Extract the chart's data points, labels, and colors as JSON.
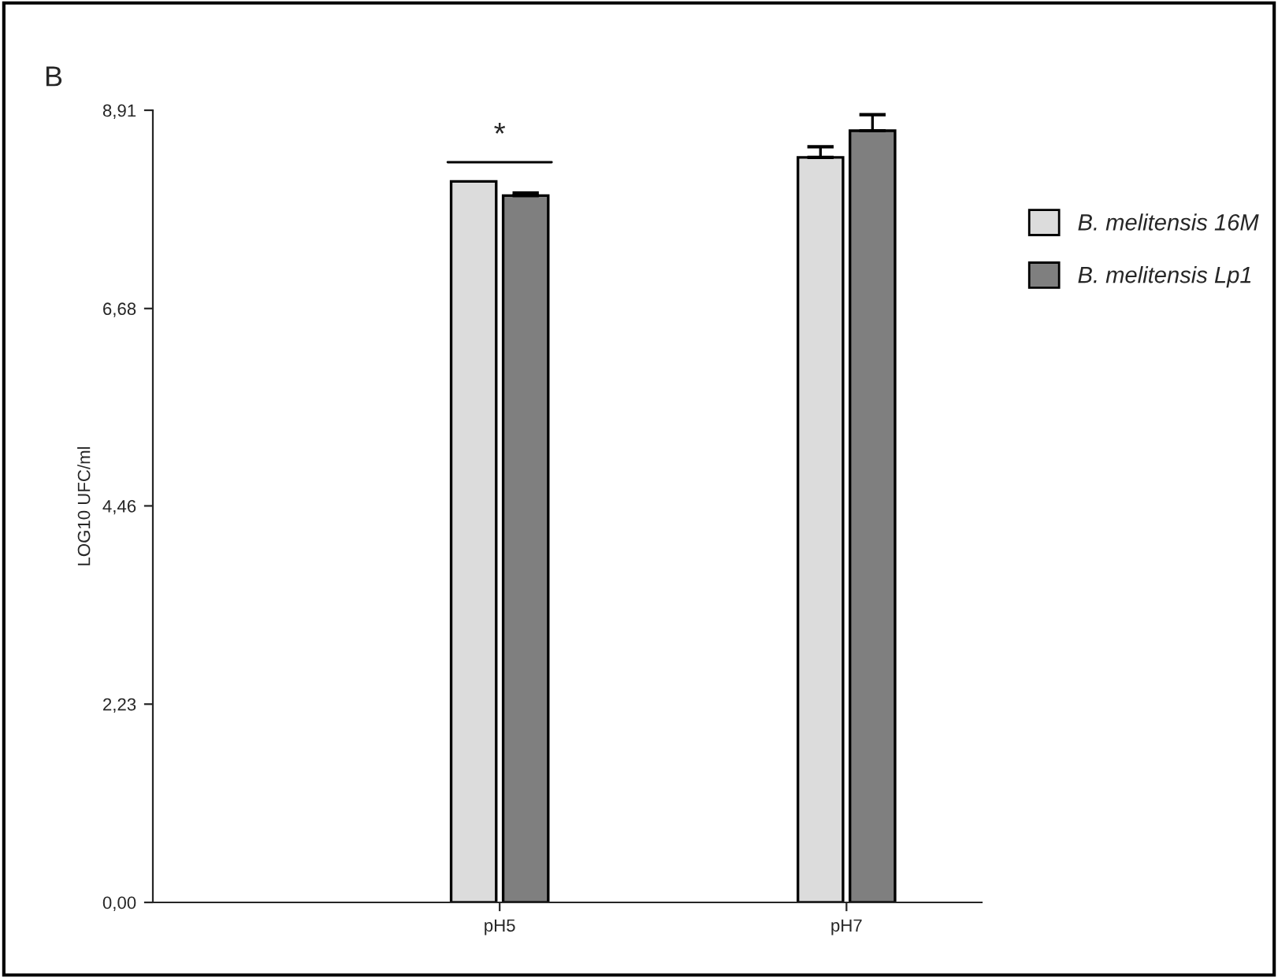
{
  "chart_data": {
    "type": "bar",
    "title": "B",
    "ylabel": "LOG10 UFC/ml",
    "categories": [
      "pH5",
      "pH7"
    ],
    "series": [
      {
        "name": "B. melitensis 16M",
        "color": "#dcdcdc",
        "values": [
          8.11,
          8.38
        ],
        "errors": [
          null,
          0.12
        ]
      },
      {
        "name": "B. melitensis Lp1",
        "color": "#7f7f7f",
        "values": [
          7.95,
          8.68
        ],
        "errors": [
          0.03,
          0.18
        ]
      }
    ],
    "ylim": [
      0,
      8.91
    ],
    "yticks": [
      {
        "value": 0,
        "label": "0,00"
      },
      {
        "value": 2.23,
        "label": "2,23"
      },
      {
        "value": 4.46,
        "label": "4,46"
      },
      {
        "value": 6.68,
        "label": "6,68"
      },
      {
        "value": 8.91,
        "label": "8,91"
      }
    ],
    "annotations": [
      "*"
    ],
    "legend": "right",
    "grid": false
  }
}
